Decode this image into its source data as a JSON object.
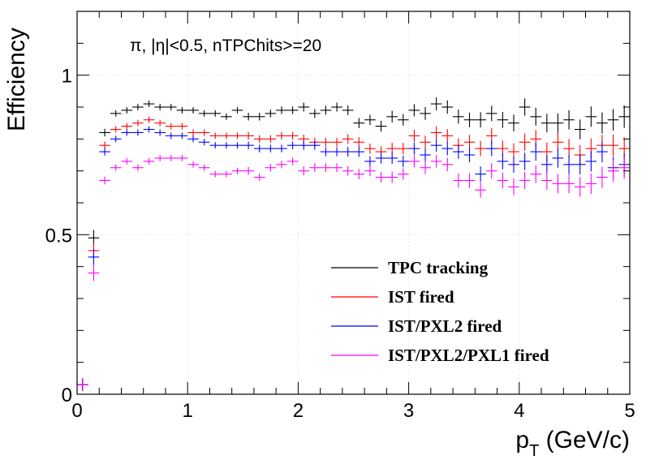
{
  "chart_data": {
    "type": "scatter",
    "title": "",
    "annotation": "π, |η|<0.5, nTPChits>=20",
    "xlabel": "p",
    "xlabel_sub": "T",
    "xlabel_unit": " (GeV/c)",
    "ylabel": "Efficiency",
    "xlim": [
      0,
      5
    ],
    "ylim": [
      0,
      1.2
    ],
    "x_ticks": [
      "0",
      "1",
      "2",
      "3",
      "4",
      "5"
    ],
    "y_ticks": [
      "0",
      "0.5",
      "1"
    ],
    "grid": true,
    "legend_position": "bottom-right",
    "bin_width": 0.1,
    "x": [
      0.05,
      0.15,
      0.25,
      0.35,
      0.45,
      0.55,
      0.65,
      0.75,
      0.85,
      0.95,
      1.05,
      1.15,
      1.25,
      1.35,
      1.45,
      1.55,
      1.65,
      1.75,
      1.85,
      1.95,
      2.05,
      2.15,
      2.25,
      2.35,
      2.45,
      2.55,
      2.65,
      2.75,
      2.85,
      2.95,
      3.05,
      3.15,
      3.25,
      3.35,
      3.45,
      3.55,
      3.65,
      3.75,
      3.85,
      3.95,
      4.05,
      4.15,
      4.25,
      4.35,
      4.45,
      4.55,
      4.65,
      4.75,
      4.85,
      4.95
    ],
    "series": [
      {
        "name": "TPC tracking",
        "color": "#000000",
        "values": [
          0.03,
          0.49,
          0.82,
          0.88,
          0.89,
          0.9,
          0.91,
          0.9,
          0.9,
          0.89,
          0.89,
          0.88,
          0.88,
          0.87,
          0.89,
          0.87,
          0.87,
          0.88,
          0.89,
          0.89,
          0.9,
          0.88,
          0.89,
          0.9,
          0.89,
          0.85,
          0.86,
          0.84,
          0.87,
          0.86,
          0.89,
          0.88,
          0.91,
          0.9,
          0.87,
          0.86,
          0.86,
          0.88,
          0.86,
          0.85,
          0.9,
          0.87,
          0.85,
          0.85,
          0.86,
          0.83,
          0.87,
          0.85,
          0.86,
          0.87
        ],
        "errors": [
          0.02,
          0.025,
          0.012,
          0.01,
          0.01,
          0.01,
          0.01,
          0.01,
          0.01,
          0.01,
          0.01,
          0.01,
          0.01,
          0.01,
          0.01,
          0.012,
          0.012,
          0.012,
          0.012,
          0.012,
          0.014,
          0.014,
          0.014,
          0.014,
          0.015,
          0.016,
          0.016,
          0.017,
          0.018,
          0.018,
          0.019,
          0.02,
          0.02,
          0.021,
          0.022,
          0.023,
          0.024,
          0.024,
          0.025,
          0.026,
          0.027,
          0.028,
          0.029,
          0.03,
          0.03,
          0.031,
          0.032,
          0.033,
          0.034,
          0.035
        ]
      },
      {
        "name": "IST fired",
        "color": "#ff0000",
        "values": [
          0.03,
          0.45,
          0.78,
          0.83,
          0.84,
          0.85,
          0.86,
          0.85,
          0.84,
          0.84,
          0.82,
          0.82,
          0.81,
          0.81,
          0.81,
          0.81,
          0.8,
          0.8,
          0.81,
          0.81,
          0.8,
          0.79,
          0.79,
          0.79,
          0.8,
          0.79,
          0.77,
          0.76,
          0.77,
          0.77,
          0.81,
          0.79,
          0.82,
          0.81,
          0.78,
          0.79,
          0.77,
          0.81,
          0.77,
          0.76,
          0.79,
          0.8,
          0.76,
          0.79,
          0.77,
          0.75,
          0.77,
          0.78,
          0.78,
          0.77
        ],
        "errors": [
          0.02,
          0.025,
          0.012,
          0.01,
          0.01,
          0.01,
          0.01,
          0.01,
          0.01,
          0.01,
          0.01,
          0.01,
          0.01,
          0.01,
          0.01,
          0.012,
          0.012,
          0.012,
          0.012,
          0.012,
          0.014,
          0.014,
          0.014,
          0.014,
          0.015,
          0.016,
          0.016,
          0.017,
          0.018,
          0.018,
          0.019,
          0.02,
          0.02,
          0.021,
          0.022,
          0.023,
          0.024,
          0.024,
          0.025,
          0.026,
          0.027,
          0.028,
          0.029,
          0.03,
          0.03,
          0.031,
          0.032,
          0.033,
          0.034,
          0.035
        ]
      },
      {
        "name": "IST/PXL2 fired",
        "color": "#0000ff",
        "values": [
          0.03,
          0.43,
          0.76,
          0.8,
          0.82,
          0.82,
          0.83,
          0.82,
          0.81,
          0.81,
          0.8,
          0.79,
          0.78,
          0.78,
          0.78,
          0.78,
          0.77,
          0.77,
          0.77,
          0.78,
          0.78,
          0.78,
          0.76,
          0.76,
          0.76,
          0.76,
          0.73,
          0.74,
          0.74,
          0.73,
          0.77,
          0.75,
          0.78,
          0.77,
          0.76,
          0.75,
          0.69,
          0.77,
          0.73,
          0.72,
          0.73,
          0.76,
          0.72,
          0.74,
          0.72,
          0.72,
          0.73,
          0.76,
          0.71,
          0.72
        ],
        "errors": [
          0.02,
          0.025,
          0.012,
          0.01,
          0.01,
          0.01,
          0.01,
          0.01,
          0.01,
          0.01,
          0.01,
          0.01,
          0.01,
          0.01,
          0.01,
          0.012,
          0.012,
          0.012,
          0.012,
          0.012,
          0.014,
          0.014,
          0.014,
          0.014,
          0.015,
          0.016,
          0.016,
          0.017,
          0.018,
          0.018,
          0.019,
          0.02,
          0.02,
          0.021,
          0.022,
          0.023,
          0.024,
          0.024,
          0.025,
          0.026,
          0.027,
          0.028,
          0.029,
          0.03,
          0.03,
          0.031,
          0.032,
          0.033,
          0.034,
          0.035
        ]
      },
      {
        "name": "IST/PXL2/PXL1 fired",
        "color": "#ff00ff",
        "values": [
          0.03,
          0.38,
          0.67,
          0.71,
          0.73,
          0.71,
          0.73,
          0.74,
          0.74,
          0.74,
          0.72,
          0.71,
          0.69,
          0.69,
          0.7,
          0.7,
          0.68,
          0.71,
          0.72,
          0.73,
          0.7,
          0.71,
          0.71,
          0.71,
          0.7,
          0.69,
          0.7,
          0.68,
          0.68,
          0.69,
          0.73,
          0.71,
          0.73,
          0.72,
          0.67,
          0.67,
          0.64,
          0.7,
          0.67,
          0.65,
          0.67,
          0.69,
          0.67,
          0.66,
          0.66,
          0.65,
          0.66,
          0.68,
          0.7,
          0.71
        ],
        "errors": [
          0.02,
          0.025,
          0.012,
          0.01,
          0.01,
          0.01,
          0.01,
          0.01,
          0.01,
          0.01,
          0.01,
          0.01,
          0.01,
          0.01,
          0.01,
          0.012,
          0.012,
          0.012,
          0.012,
          0.012,
          0.014,
          0.014,
          0.014,
          0.014,
          0.015,
          0.016,
          0.016,
          0.017,
          0.018,
          0.018,
          0.019,
          0.02,
          0.02,
          0.021,
          0.022,
          0.023,
          0.024,
          0.024,
          0.025,
          0.026,
          0.027,
          0.028,
          0.029,
          0.03,
          0.03,
          0.031,
          0.032,
          0.033,
          0.034,
          0.035
        ]
      }
    ]
  }
}
